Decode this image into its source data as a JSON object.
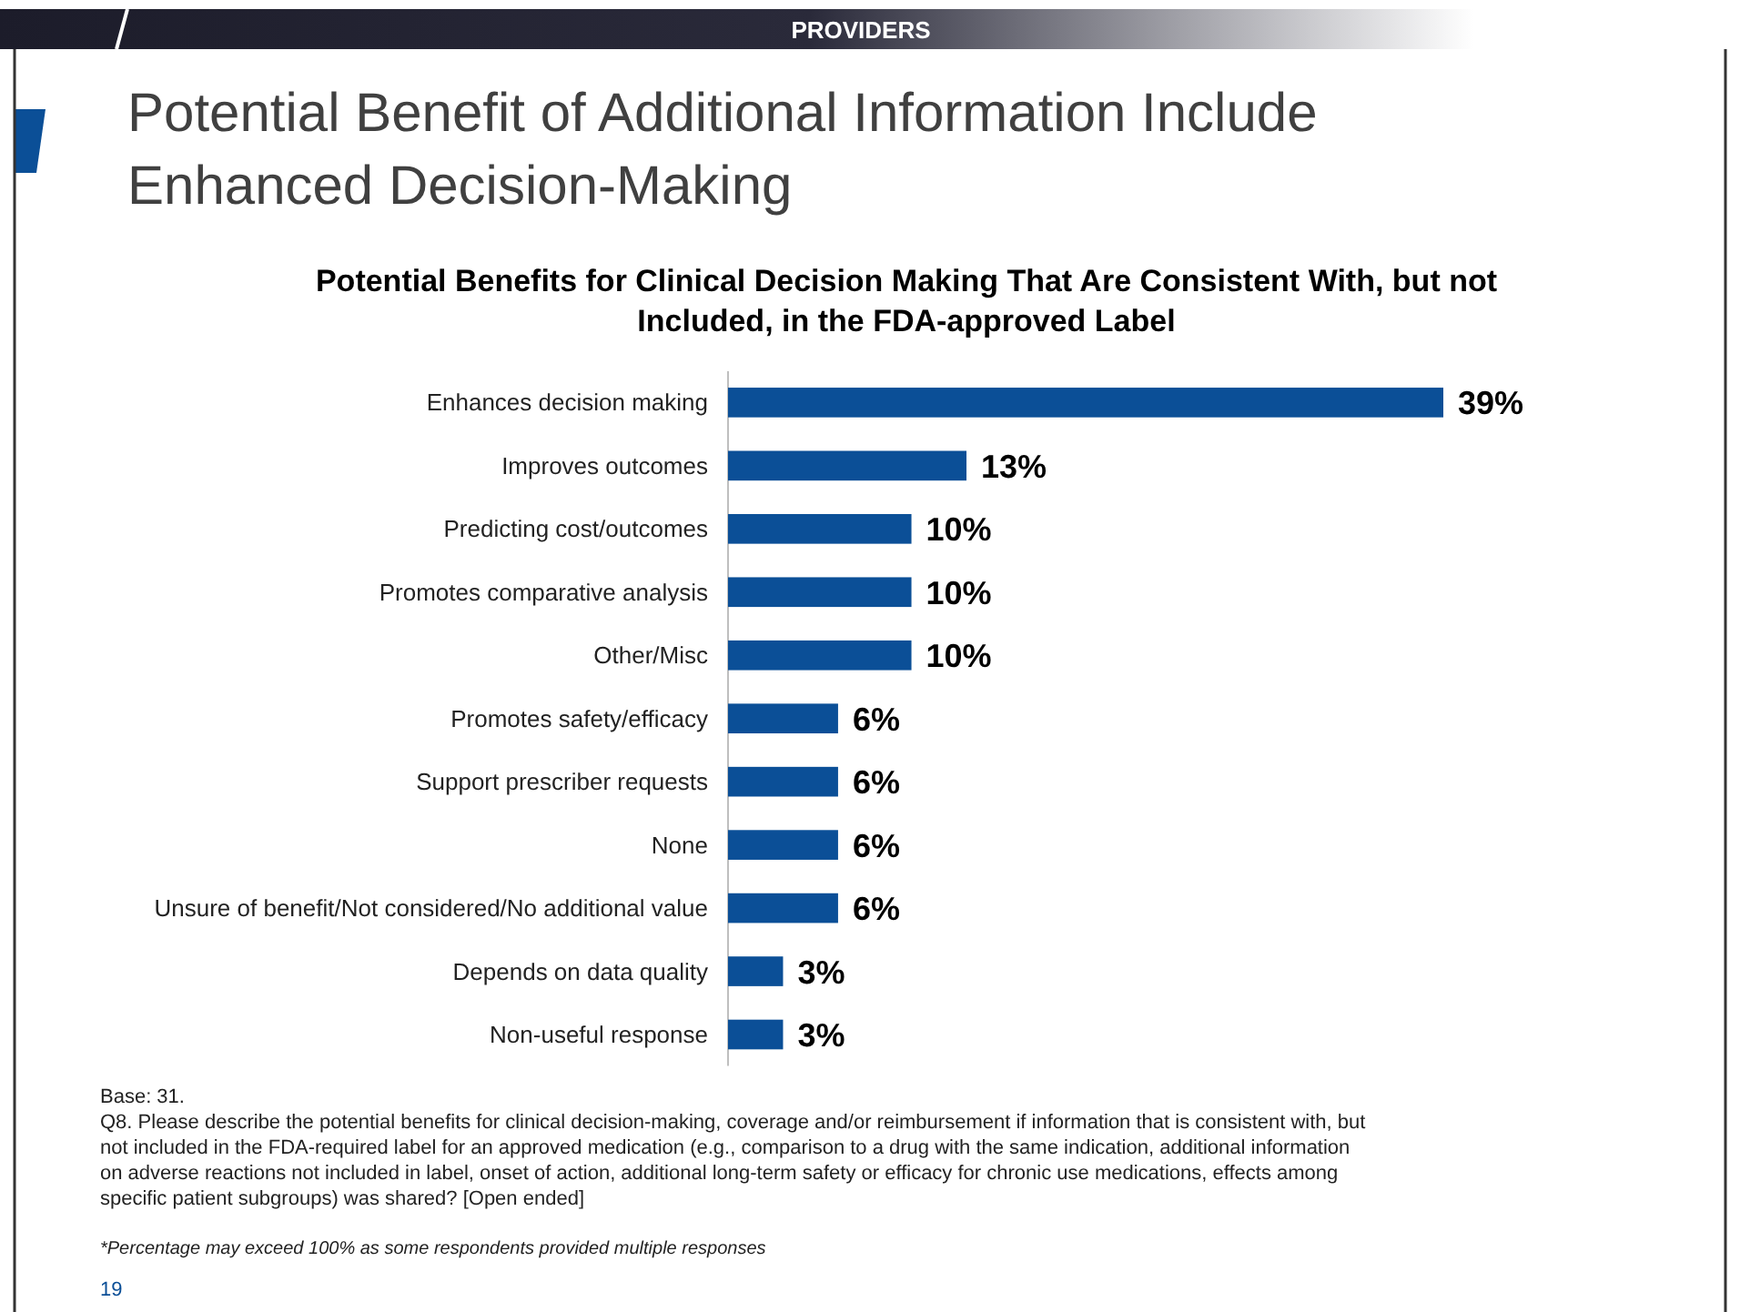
{
  "chart_data": {
    "type": "bar",
    "orientation": "horizontal",
    "title": "Potential Benefit of Additional Information Include Enhanced Decision-Making",
    "subtitle": "Potential Benefits for Clinical Decision Making That Are Consistent With, but not Included, in the FDA-approved Label",
    "categories": [
      "Enhances decision making",
      "Improves outcomes",
      "Predicting cost/outcomes",
      "Promotes comparative analysis",
      "Other/Misc",
      "Promotes safety/efficacy",
      "Support prescriber requests",
      "None",
      "Unsure of benefit/Not considered/No additional value",
      "Depends on data quality",
      "Non-useful response"
    ],
    "values": [
      39,
      13,
      10,
      10,
      10,
      6,
      6,
      6,
      6,
      3,
      3
    ],
    "value_labels": [
      "39%",
      "13%",
      "10%",
      "10%",
      "10%",
      "6%",
      "6%",
      "6%",
      "6%",
      "3%",
      "3%"
    ],
    "color": "#0b4f97",
    "annotations": [
      "PROVIDERS",
      "Base: 31.",
      "Q8. Please describe the potential benefits for clinical decision-making, coverage and/or reimbursement if information that is consistent with, but not included in the FDA-required label for an approved medication (e.g., comparison to a drug with the same indication, additional information on adverse reactions not included in label, onset of action, additional long-term safety or efficacy for chronic use medications, effects among specific patient subgroups) was shared? [Open ended]",
      "*Percentage may exceed 100% as some respondents provided multiple responses",
      "19"
    ]
  }
}
